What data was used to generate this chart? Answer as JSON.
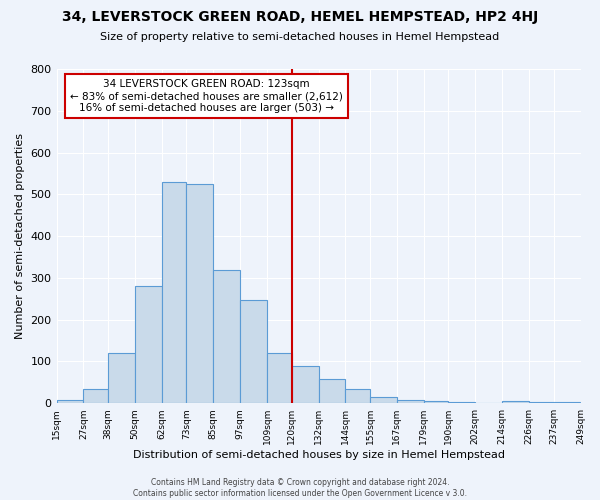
{
  "title": "34, LEVERSTOCK GREEN ROAD, HEMEL HEMPSTEAD, HP2 4HJ",
  "subtitle": "Size of property relative to semi-detached houses in Hemel Hempstead",
  "xlabel": "Distribution of semi-detached houses by size in Hemel Hempstead",
  "ylabel": "Number of semi-detached properties",
  "footnote": "Contains HM Land Registry data © Crown copyright and database right 2024.\nContains public sector information licensed under the Open Government Licence v 3.0.",
  "bin_edges": [
    15,
    27,
    38,
    50,
    62,
    73,
    85,
    97,
    109,
    120,
    132,
    144,
    155,
    167,
    179,
    190,
    202,
    214,
    226,
    237,
    249
  ],
  "counts": [
    8,
    35,
    120,
    280,
    530,
    525,
    320,
    248,
    120,
    90,
    58,
    35,
    15,
    8,
    5,
    2,
    0,
    5,
    3,
    2
  ],
  "property_size": 120,
  "bar_color": "#c9daea",
  "bar_edge_color": "#5b9bd5",
  "vline_color": "#cc0000",
  "annotation_box_color": "#cc0000",
  "background_color": "#eef3fb",
  "grid_color": "#ffffff",
  "ylim": [
    0,
    800
  ],
  "yticks": [
    0,
    100,
    200,
    300,
    400,
    500,
    600,
    700,
    800
  ]
}
